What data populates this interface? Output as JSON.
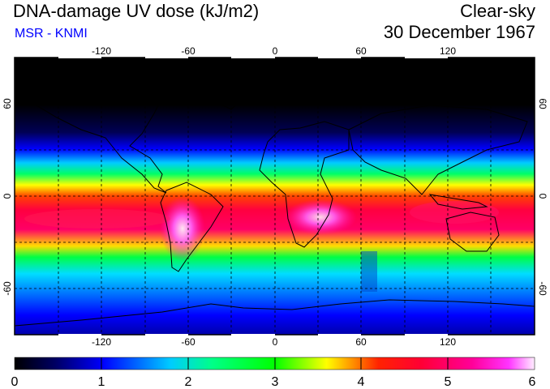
{
  "header": {
    "title": "DNA-damage UV dose (kJ/m2)",
    "source": "MSR - KNMI",
    "sky": "Clear-sky",
    "date": "30 December 1967"
  },
  "map": {
    "lon_ticks": [
      "-120",
      "-60",
      "0",
      "60",
      "120"
    ],
    "lat_ticks": [
      "60",
      "0",
      "-60"
    ]
  },
  "colorbar": {
    "labels": [
      "0",
      "1",
      "2",
      "3",
      "4",
      "5",
      "6"
    ],
    "min": 0,
    "max": 6,
    "colors": [
      "#000000",
      "#00008b",
      "#0000ff",
      "#00ffff",
      "#00ff00",
      "#ffff00",
      "#ff0000",
      "#ff1493",
      "#ff00ff",
      "#ffffff"
    ]
  }
}
